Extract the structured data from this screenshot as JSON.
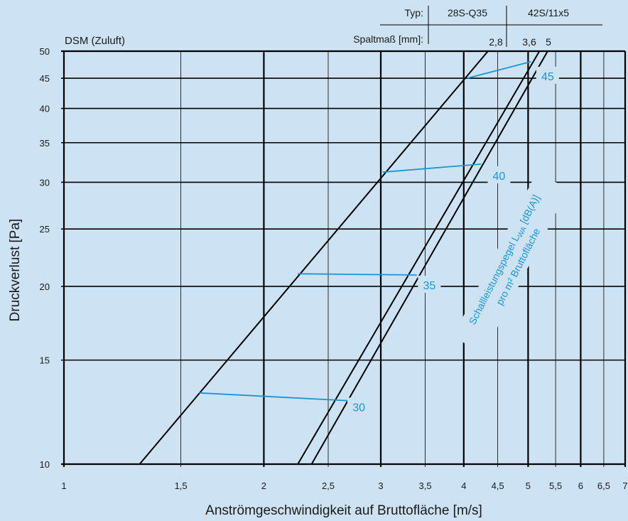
{
  "chart_data": {
    "type": "line",
    "title": "DSM (Zuluft)",
    "xlabel": "Anströmgeschwindigkeit auf Bruttofläche [m/s]",
    "ylabel": "Druckverlust [Pa]",
    "x_scale": "log",
    "y_scale": "log",
    "xlim": [
      1,
      7
    ],
    "ylim": [
      10,
      50
    ],
    "x_ticks": [
      1,
      1.5,
      2,
      2.5,
      3,
      3.5,
      4,
      4.5,
      5,
      5.5,
      6,
      6.5,
      7
    ],
    "x_tick_labels": [
      "1",
      "1,5",
      "2",
      "2,5",
      "3",
      "3,5",
      "4",
      "4,5",
      "5",
      "5,5",
      "6",
      "6,5",
      "7"
    ],
    "x_major": [
      1,
      2,
      3,
      4,
      5,
      6,
      7
    ],
    "y_ticks": [
      10,
      15,
      20,
      25,
      30,
      35,
      40,
      45,
      50
    ],
    "y_tick_labels": [
      "10",
      "15",
      "20",
      "25",
      "30",
      "35",
      "40",
      "45",
      "50"
    ],
    "header_table": {
      "row1_label": "Typ:",
      "row2_label": "Spaltmaß [mm]:",
      "types": [
        "28S-Q35",
        "42S/11x5"
      ],
      "gaps": [
        "2,8",
        "3,6",
        "5"
      ]
    },
    "series": [
      {
        "name": "2,8",
        "points": [
          [
            1.3,
            10
          ],
          [
            4.35,
            50
          ]
        ]
      },
      {
        "name": "3,6",
        "points": [
          [
            2.25,
            10
          ],
          [
            5.2,
            50
          ]
        ]
      },
      {
        "name": "5",
        "points": [
          [
            2.36,
            10
          ],
          [
            5.35,
            50
          ]
        ]
      }
    ],
    "sound_lines": [
      {
        "label": "30",
        "points": [
          [
            1.6,
            13.2
          ],
          [
            2.7,
            12.8
          ]
        ],
        "label_at": [
          2.78,
          12.5
        ]
      },
      {
        "label": "35",
        "points": [
          [
            2.25,
            21.0
          ],
          [
            3.4,
            20.9
          ]
        ],
        "label_at": [
          3.55,
          20.1
        ]
      },
      {
        "label": "40",
        "points": [
          [
            3.02,
            31.2
          ],
          [
            4.25,
            32.2
          ]
        ],
        "label_at": [
          4.52,
          30.8
        ]
      },
      {
        "label": "45",
        "points": [
          [
            4.05,
            45.0
          ],
          [
            5.05,
            48.0
          ]
        ],
        "label_at": [
          5.35,
          45.4
        ]
      }
    ],
    "annotation": {
      "line1_prefix": "Schallleistungspegel L",
      "line1_sub": "WA",
      "line1_suffix": " [dB(A)]",
      "line2": "pro m² Bruttofläche"
    },
    "colors": {
      "background": "#cde2f2",
      "grid": "#000000",
      "curve": "#000000",
      "sound": "#1a96d4",
      "text": "#1a1a1a"
    }
  }
}
